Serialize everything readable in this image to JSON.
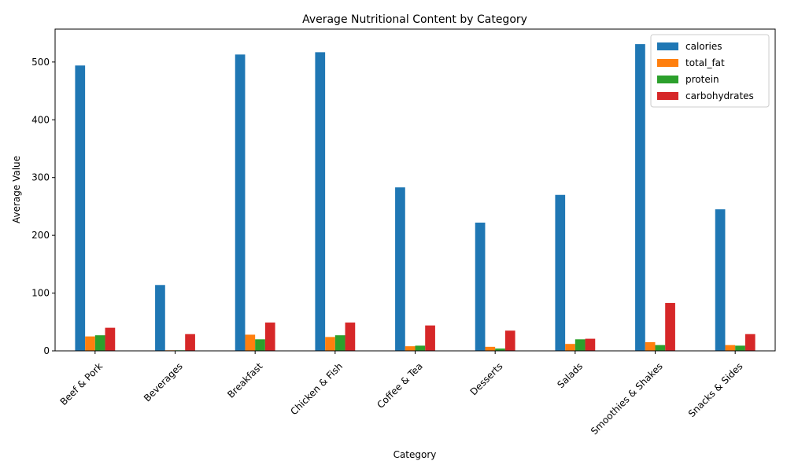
{
  "chart_data": {
    "type": "bar",
    "title": "Average Nutritional Content by Category",
    "xlabel": "Category",
    "ylabel": "Average Value",
    "ylim": [
      0,
      557
    ],
    "yticks": [
      0,
      100,
      200,
      300,
      400,
      500
    ],
    "legend_position": "top-right",
    "grid": false,
    "categories": [
      "Beef & Pork",
      "Beverages",
      "Breakfast",
      "Chicken & Fish",
      "Coffee & Tea",
      "Desserts",
      "Salads",
      "Smoothies & Shakes",
      "Snacks & Sides"
    ],
    "series": [
      {
        "name": "calories",
        "color": "#1f77b4",
        "values": [
          494,
          114,
          513,
          517,
          283,
          222,
          270,
          531,
          245
        ]
      },
      {
        "name": "total_fat",
        "color": "#ff7f0e",
        "values": [
          25,
          1,
          28,
          24,
          8,
          7,
          12,
          15,
          10
        ]
      },
      {
        "name": "protein",
        "color": "#2ca02c",
        "values": [
          27,
          1,
          20,
          27,
          9,
          4,
          20,
          10,
          9
        ]
      },
      {
        "name": "carbohydrates",
        "color": "#d62728",
        "values": [
          40,
          29,
          49,
          49,
          44,
          35,
          21,
          83,
          29
        ]
      }
    ]
  }
}
